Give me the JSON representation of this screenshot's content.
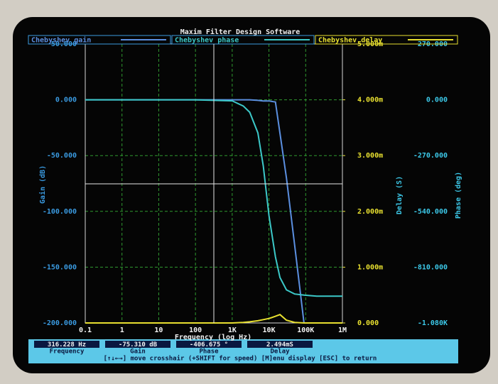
{
  "chart_data": {
    "type": "line",
    "title": "Maxim Filter Design Software",
    "xlabel": "Frequency (log Hz)",
    "ylabel": "Gain (dB)",
    "y2label": "Delay (S)",
    "y3label": "Phase (deg)",
    "xscale": "log",
    "grid": true,
    "x": [
      0.1,
      1,
      10,
      100,
      1000,
      2000,
      3000,
      5000,
      7000,
      10000,
      15000,
      20000,
      30000,
      50000,
      90000,
      200000,
      1000000
    ],
    "series": [
      {
        "name": "Chebyshev gain",
        "color": "#5b8fe0",
        "axis": "y",
        "values": [
          0,
          0,
          0,
          0,
          0,
          0,
          0,
          -0.5,
          -1,
          -1,
          -2,
          -30,
          -70,
          -130,
          -200,
          null,
          null
        ]
      },
      {
        "name": "Chebyshev phase",
        "color": "#3cc8c8",
        "axis": "y3",
        "values": [
          0,
          0,
          0,
          0,
          -5,
          -30,
          -60,
          -160,
          -320,
          -560,
          -760,
          -860,
          -920,
          -940,
          -945,
          -950,
          -950
        ]
      },
      {
        "name": "Chebyshev delay",
        "color": "#e8e030",
        "axis": "y2",
        "values": [
          0,
          0,
          0,
          0,
          0,
          1e-05,
          2e-05,
          4e-05,
          6e-05,
          8e-05,
          0.00012,
          0.00015,
          5e-05,
          1e-05,
          0,
          0,
          0
        ]
      }
    ],
    "xlim": [
      0.1,
      1000000
    ],
    "xticks": [
      0.1,
      1,
      10,
      100,
      {
        "value": 1000,
        "label": "1K"
      },
      {
        "value": 10000,
        "label": "10K"
      },
      {
        "value": 100000,
        "label": "100K"
      },
      {
        "value": 1000000,
        "label": "1M"
      }
    ],
    "ylim": [
      -200,
      50
    ],
    "yticks": [
      {
        "value": -200,
        "label": "-200.000"
      },
      {
        "value": -150,
        "label": "-150.000"
      },
      {
        "value": -100,
        "label": "-100.000"
      },
      {
        "value": -50,
        "label": "-50.000"
      },
      {
        "value": 0,
        "label": "0.000"
      },
      {
        "value": 50,
        "label": "50.000"
      }
    ],
    "y2lim": [
      0,
      0.005
    ],
    "y2ticks": [
      {
        "value": 0,
        "label": "0.000"
      },
      {
        "value": 0.001,
        "label": "1.000m"
      },
      {
        "value": 0.002,
        "label": "2.000m"
      },
      {
        "value": 0.003,
        "label": "3.000m"
      },
      {
        "value": 0.004,
        "label": "4.000m"
      },
      {
        "value": 0.005,
        "label": "5.000m"
      }
    ],
    "y3lim": [
      -1080,
      270
    ],
    "y3ticks": [
      {
        "value": -1080,
        "label": "-1.080K"
      },
      {
        "value": -810,
        "label": "-810.000"
      },
      {
        "value": -540,
        "label": "-540.000"
      },
      {
        "value": -270,
        "label": "-270.000"
      },
      {
        "value": 0,
        "label": "0.000"
      },
      {
        "value": 270,
        "label": "270.000"
      }
    ]
  },
  "crosshair": {
    "names": [
      "Frequency",
      "Gain",
      "Phase",
      "Delay"
    ],
    "values": [
      316.228,
      -75.31,
      -406.675,
      0.002494
    ],
    "value_labels": [
      "316.228 Hz",
      "-75.310 dB",
      "-406.675 °",
      "2.494mS"
    ]
  },
  "help_line": "[↑↓←→] move crosshair (+SHIFT for speed) [M]enu display [ESC] to return"
}
